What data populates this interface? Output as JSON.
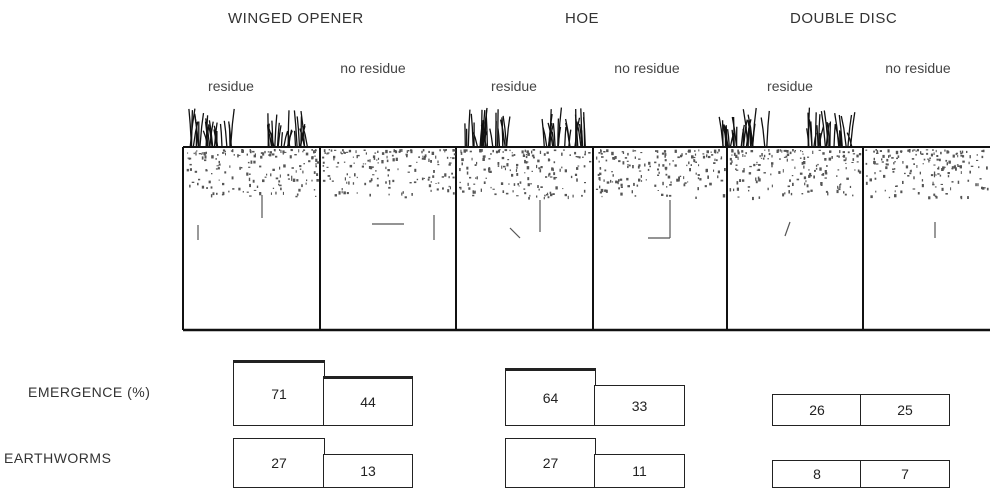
{
  "columns": [
    {
      "title": "WINGED OPENER",
      "sub_residue": "residue",
      "sub_no_residue": "no residue"
    },
    {
      "title": "HOE",
      "sub_residue": "residue",
      "sub_no_residue": "no residue"
    },
    {
      "title": "DOUBLE DISC",
      "sub_residue": "residue",
      "sub_no_residue": "no residue"
    }
  ],
  "rows": {
    "emergence_label": "EMERGENCE (%)",
    "earthworms_label": "EARTHWORMS"
  },
  "values": {
    "winged_opener": {
      "emergence_residue": "71",
      "emergence_no_residue": "44",
      "earthworms_residue": "27",
      "earthworms_no_residue": "13"
    },
    "hoe": {
      "emergence_residue": "64",
      "emergence_no_residue": "33",
      "earthworms_residue": "27",
      "earthworms_no_residue": "11"
    },
    "double_disc": {
      "emergence_residue": "26",
      "emergence_no_residue": "25",
      "earthworms_residue": "8",
      "earthworms_no_residue": "7"
    }
  }
}
